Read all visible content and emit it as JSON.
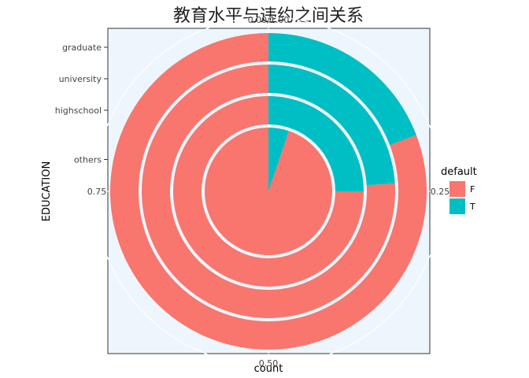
{
  "chart_data": {
    "type": "pie",
    "subtype": "stacked-proportion-rings (coord_polar)",
    "title": "教育水平与违约之间关系",
    "xlabel": "count",
    "ylabel": "EDUCATION",
    "categories": [
      "others",
      "highschool",
      "university",
      "graduate"
    ],
    "series": [
      {
        "name": "T",
        "color": "#00BFC4",
        "values": [
          0.052,
          0.25,
          0.24,
          0.192
        ]
      },
      {
        "name": "F",
        "color": "#F8766D",
        "values": [
          0.948,
          0.75,
          0.76,
          0.808
        ]
      }
    ],
    "angle_ticks": [
      {
        "value": 0,
        "label": "0.00/1.00"
      },
      {
        "value": 0.25,
        "label": "0.25"
      },
      {
        "value": 0.5,
        "label": "0.50"
      },
      {
        "value": 0.75,
        "label": "0.75"
      }
    ],
    "legend": {
      "title": "default",
      "position": "right",
      "items": [
        {
          "label": "F",
          "color": "#F8766D"
        },
        {
          "label": "T",
          "color": "#00BFC4"
        }
      ]
    },
    "panel_background": "#EEF6FD",
    "grid": true
  }
}
